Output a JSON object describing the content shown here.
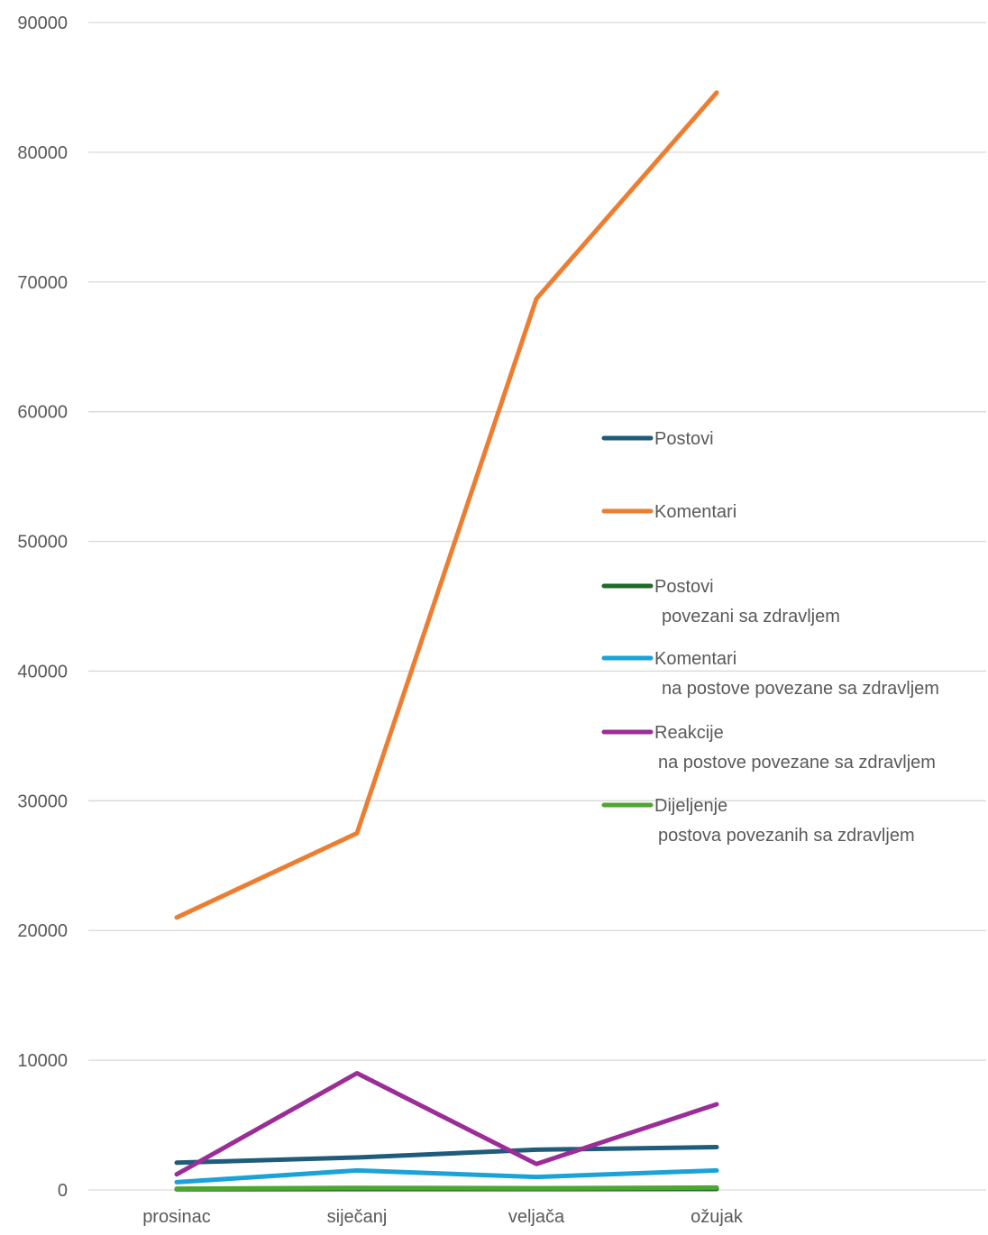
{
  "chart_data": {
    "type": "line",
    "title": "",
    "xlabel": "",
    "ylabel": "",
    "categories": [
      "prosinac",
      "siječanj",
      "veljača",
      "ožujak"
    ],
    "y_ticks": [
      "90000",
      "80000",
      "70000",
      "60000",
      "50000",
      "40000",
      "30000",
      "20000",
      "10000",
      "0"
    ],
    "ylim": [
      0,
      90000
    ],
    "grid": true,
    "legend_position": "right, inside plot",
    "series": [
      {
        "name": "Postovi",
        "color": "#1f5b7a",
        "values": [
          2100,
          2500,
          3100,
          3300
        ]
      },
      {
        "name": "Komentari",
        "color": "#ed7d31",
        "values": [
          21000,
          27500,
          68700,
          84600
        ]
      },
      {
        "name": "Postovi\n povezani sa zdravljem",
        "color": "#1e6b24",
        "values": [
          50,
          60,
          60,
          70
        ]
      },
      {
        "name": "Komentari\n na postove povezane sa zdravljem",
        "color": "#1aa3d9",
        "values": [
          600,
          1500,
          1000,
          1500
        ]
      },
      {
        "name": "Reakcije\nna postove povezane sa zdravljem",
        "color": "#9b2e96",
        "values": [
          1200,
          9000,
          2000,
          6600
        ]
      },
      {
        "name": "Dijeljenje\npostova povezanih sa zdravljem",
        "color": "#4ea72e",
        "values": [
          100,
          160,
          130,
          180
        ]
      }
    ]
  }
}
